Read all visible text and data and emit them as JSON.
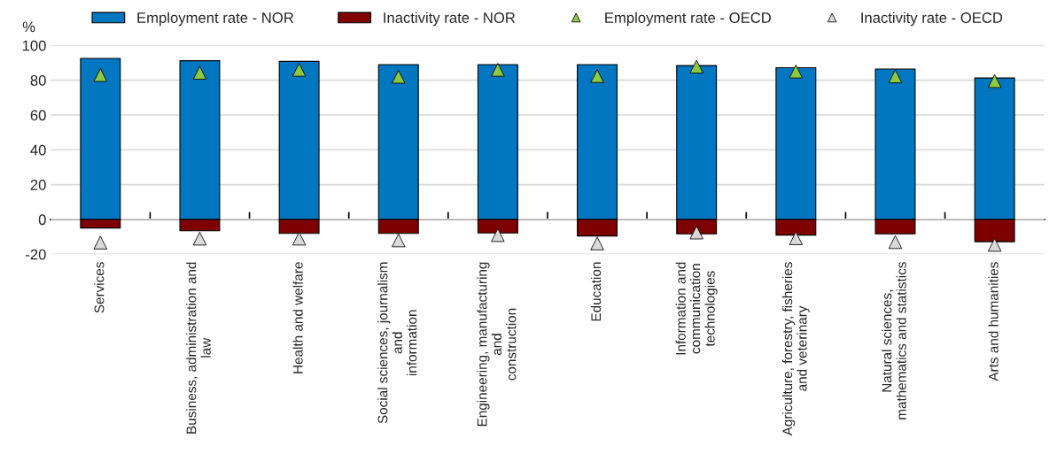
{
  "chart_data": {
    "type": "bar",
    "ylabel": "%",
    "categories": [
      "Services",
      "Business, administration and\nlaw",
      "Health and welfare",
      "Social sciences, journalism\nand\ninformation",
      "Engineering, manufacturing\nand\nconstruction",
      "Education",
      "Information and\ncommunication\ntechnologies",
      "Agriculture, forestry, fisheries\nand veterinary",
      "Natural sciences,\nmathematics and statistics",
      "Arts and humanities"
    ],
    "series": [
      {
        "name": "Employment rate - NOR",
        "color": "#0077c0",
        "values": [
          92.5,
          91.2,
          90.8,
          89,
          89,
          89,
          88.4,
          87.2,
          86.4,
          81.3
        ]
      },
      {
        "name": "Inactivity rate - NOR",
        "color": "#7f0000",
        "values": [
          -4.9,
          -6.5,
          -8,
          -8,
          -7.8,
          -9.5,
          -8.3,
          -9,
          -8.3,
          -12.8
        ]
      },
      {
        "name": "Employment rate - OECD",
        "type": "scatter",
        "marker": "triangle",
        "color": "#8cc841",
        "values": [
          83,
          84.3,
          86,
          82,
          86,
          82.4,
          87.8,
          85,
          82.2,
          79.5
        ]
      },
      {
        "name": "Inactivity rate - OECD",
        "type": "scatter",
        "marker": "triangle",
        "color": "#d9d9d9",
        "values": [
          -13.3,
          -11,
          -11,
          -12,
          -9,
          -13.8,
          -7.5,
          -10.8,
          -13,
          -14.6
        ]
      }
    ],
    "ylim": [
      -20,
      100
    ],
    "yticks": [
      -20,
      0,
      20,
      40,
      60,
      80,
      100
    ],
    "grid": "y",
    "legend": "top",
    "stacked": true
  }
}
